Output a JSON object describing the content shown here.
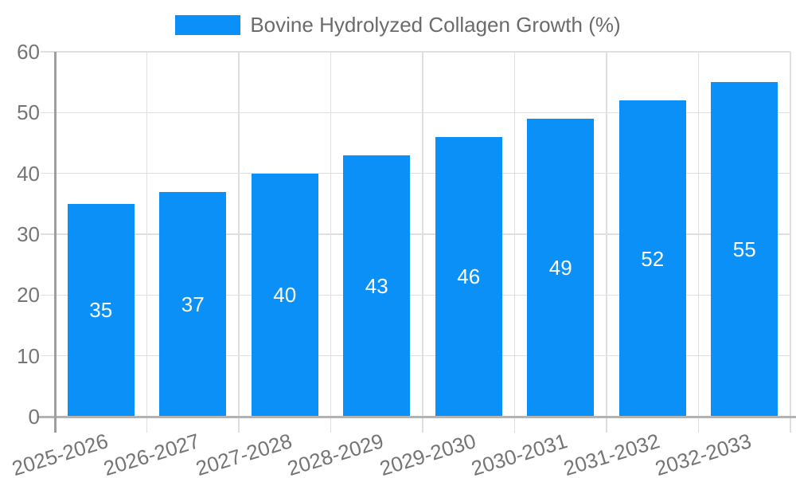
{
  "chart_data": {
    "type": "bar",
    "title": "",
    "legend": "Bovine Hydrolyzed Collagen Growth (%)",
    "categories": [
      "2025-2026",
      "2026-2027",
      "2027-2028",
      "2028-2029",
      "2029-2030",
      "2030-2031",
      "2031-2032",
      "2032-2033"
    ],
    "values": [
      35,
      37,
      40,
      43,
      46,
      49,
      52,
      55
    ],
    "ylim": [
      0,
      60
    ],
    "yticks": [
      0,
      10,
      20,
      30,
      40,
      50,
      60
    ],
    "grid": true,
    "legend_position": "top-center",
    "value_label_position": "inside-center",
    "colors": {
      "bar": "#0A90F6",
      "grid_line": "#DFDFDF",
      "x_axis_line": "#B3B3B3",
      "y_axis_line": "#9E9E9E",
      "axis_tick_text": "#757575",
      "legend_text": "#6B6B6B",
      "value_label_text": "#FFFFFF",
      "background": "#FFFFFF"
    }
  }
}
